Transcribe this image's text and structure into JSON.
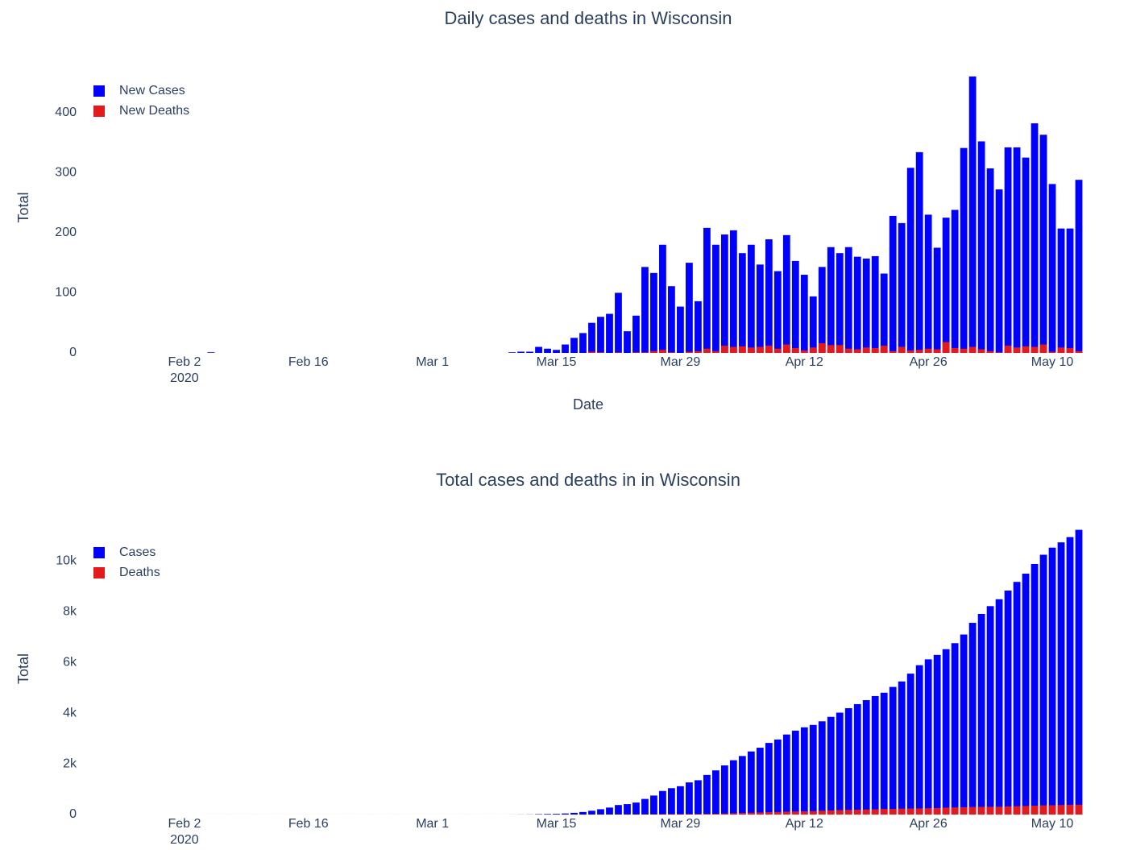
{
  "chart_data": [
    {
      "type": "bar",
      "title": "Daily cases and deaths in Wisconsin",
      "xlabel": "Date",
      "ylabel": "Total",
      "x": [
        "2020-02-05",
        "2020-02-06",
        "2020-02-07",
        "2020-02-08",
        "2020-02-09",
        "2020-02-10",
        "2020-02-11",
        "2020-02-12",
        "2020-02-13",
        "2020-02-14",
        "2020-02-15",
        "2020-02-16",
        "2020-02-17",
        "2020-02-18",
        "2020-02-19",
        "2020-02-20",
        "2020-02-21",
        "2020-02-22",
        "2020-02-23",
        "2020-02-24",
        "2020-02-25",
        "2020-02-26",
        "2020-02-27",
        "2020-02-28",
        "2020-02-29",
        "2020-03-01",
        "2020-03-02",
        "2020-03-03",
        "2020-03-04",
        "2020-03-05",
        "2020-03-06",
        "2020-03-07",
        "2020-03-08",
        "2020-03-09",
        "2020-03-10",
        "2020-03-11",
        "2020-03-12",
        "2020-03-13",
        "2020-03-14",
        "2020-03-15",
        "2020-03-16",
        "2020-03-17",
        "2020-03-18",
        "2020-03-19",
        "2020-03-20",
        "2020-03-21",
        "2020-03-22",
        "2020-03-23",
        "2020-03-24",
        "2020-03-25",
        "2020-03-26",
        "2020-03-27",
        "2020-03-28",
        "2020-03-29",
        "2020-03-30",
        "2020-03-31",
        "2020-04-01",
        "2020-04-02",
        "2020-04-03",
        "2020-04-04",
        "2020-04-05",
        "2020-04-06",
        "2020-04-07",
        "2020-04-08",
        "2020-04-09",
        "2020-04-10",
        "2020-04-11",
        "2020-04-12",
        "2020-04-13",
        "2020-04-14",
        "2020-04-15",
        "2020-04-16",
        "2020-04-17",
        "2020-04-18",
        "2020-04-19",
        "2020-04-20",
        "2020-04-21",
        "2020-04-22",
        "2020-04-23",
        "2020-04-24",
        "2020-04-25",
        "2020-04-26",
        "2020-04-27",
        "2020-04-28",
        "2020-04-29",
        "2020-04-30",
        "2020-05-01",
        "2020-05-02",
        "2020-05-03",
        "2020-05-04",
        "2020-05-05",
        "2020-05-06",
        "2020-05-07",
        "2020-05-08",
        "2020-05-09",
        "2020-05-10",
        "2020-05-11",
        "2020-05-12",
        "2020-05-13"
      ],
      "series": [
        {
          "name": "New Cases",
          "color": "#0000ff",
          "values": [
            1,
            0,
            0,
            0,
            0,
            0,
            0,
            0,
            0,
            0,
            0,
            0,
            0,
            0,
            0,
            0,
            0,
            0,
            0,
            0,
            0,
            0,
            0,
            0,
            0,
            0,
            0,
            0,
            0,
            0,
            0,
            0,
            0,
            0,
            1,
            2,
            2,
            10,
            7,
            5,
            14,
            25,
            33,
            50,
            60,
            65,
            100,
            36,
            62,
            143,
            133,
            180,
            111,
            77,
            150,
            86,
            208,
            180,
            197,
            204,
            166,
            180,
            147,
            189,
            136,
            196,
            153,
            130,
            94,
            143,
            176,
            166,
            176,
            160,
            157,
            161,
            132,
            228,
            216,
            308,
            334,
            230,
            175,
            225,
            238,
            341,
            460,
            352,
            307,
            272,
            342,
            342,
            325,
            382,
            363,
            281,
            207,
            207,
            288
          ]
        },
        {
          "name": "New Deaths",
          "color": "#e31a1c",
          "values": [
            0,
            0,
            0,
            0,
            0,
            0,
            0,
            0,
            0,
            0,
            0,
            0,
            0,
            0,
            0,
            0,
            0,
            0,
            0,
            0,
            0,
            0,
            0,
            0,
            0,
            0,
            0,
            0,
            0,
            0,
            0,
            0,
            0,
            0,
            0,
            0,
            0,
            0,
            0,
            0,
            0,
            0,
            0,
            2,
            1,
            0,
            1,
            0,
            1,
            1,
            3,
            5,
            1,
            0,
            2,
            3,
            7,
            3,
            12,
            10,
            11,
            9,
            10,
            12,
            7,
            14,
            8,
            4,
            9,
            16,
            13,
            13,
            7,
            6,
            9,
            8,
            12,
            3,
            10,
            4,
            5,
            7,
            6,
            18,
            8,
            7,
            10,
            6,
            3,
            1,
            12,
            9,
            11,
            10,
            14,
            2,
            9,
            8,
            3
          ]
        }
      ],
      "xlim": [
        "2020-01-22",
        "2020-05-14"
      ],
      "xticks": [
        {
          "value": "2020-02-02",
          "label": "Feb 2",
          "year": "2020"
        },
        {
          "value": "2020-02-16",
          "label": "Feb 16"
        },
        {
          "value": "2020-03-01",
          "label": "Mar 1"
        },
        {
          "value": "2020-03-15",
          "label": "Mar 15"
        },
        {
          "value": "2020-03-29",
          "label": "Mar 29"
        },
        {
          "value": "2020-04-12",
          "label": "Apr 12"
        },
        {
          "value": "2020-04-26",
          "label": "Apr 26"
        },
        {
          "value": "2020-05-10",
          "label": "May 10"
        }
      ],
      "ylim": [
        0,
        484
      ],
      "yticks": [
        0,
        100,
        200,
        300,
        400
      ],
      "legend": "top-left"
    },
    {
      "type": "bar",
      "title": "Total cases and deaths in in Wisconsin",
      "ylabel": "Total",
      "x": [
        "2020-02-05",
        "2020-02-06",
        "2020-02-07",
        "2020-02-08",
        "2020-02-09",
        "2020-02-10",
        "2020-02-11",
        "2020-02-12",
        "2020-02-13",
        "2020-02-14",
        "2020-02-15",
        "2020-02-16",
        "2020-02-17",
        "2020-02-18",
        "2020-02-19",
        "2020-02-20",
        "2020-02-21",
        "2020-02-22",
        "2020-02-23",
        "2020-02-24",
        "2020-02-25",
        "2020-02-26",
        "2020-02-27",
        "2020-02-28",
        "2020-02-29",
        "2020-03-01",
        "2020-03-02",
        "2020-03-03",
        "2020-03-04",
        "2020-03-05",
        "2020-03-06",
        "2020-03-07",
        "2020-03-08",
        "2020-03-09",
        "2020-03-10",
        "2020-03-11",
        "2020-03-12",
        "2020-03-13",
        "2020-03-14",
        "2020-03-15",
        "2020-03-16",
        "2020-03-17",
        "2020-03-18",
        "2020-03-19",
        "2020-03-20",
        "2020-03-21",
        "2020-03-22",
        "2020-03-23",
        "2020-03-24",
        "2020-03-25",
        "2020-03-26",
        "2020-03-27",
        "2020-03-28",
        "2020-03-29",
        "2020-03-30",
        "2020-03-31",
        "2020-04-01",
        "2020-04-02",
        "2020-04-03",
        "2020-04-04",
        "2020-04-05",
        "2020-04-06",
        "2020-04-07",
        "2020-04-08",
        "2020-04-09",
        "2020-04-10",
        "2020-04-11",
        "2020-04-12",
        "2020-04-13",
        "2020-04-14",
        "2020-04-15",
        "2020-04-16",
        "2020-04-17",
        "2020-04-18",
        "2020-04-19",
        "2020-04-20",
        "2020-04-21",
        "2020-04-22",
        "2020-04-23",
        "2020-04-24",
        "2020-04-25",
        "2020-04-26",
        "2020-04-27",
        "2020-04-28",
        "2020-04-29",
        "2020-04-30",
        "2020-05-01",
        "2020-05-02",
        "2020-05-03",
        "2020-05-04",
        "2020-05-05",
        "2020-05-06",
        "2020-05-07",
        "2020-05-08",
        "2020-05-09",
        "2020-05-10",
        "2020-05-11",
        "2020-05-12",
        "2020-05-13"
      ],
      "series": [
        {
          "name": "Cases",
          "color": "#0000ff",
          "values": [
            1,
            1,
            1,
            1,
            1,
            1,
            1,
            1,
            1,
            1,
            1,
            1,
            1,
            1,
            1,
            1,
            1,
            1,
            1,
            1,
            1,
            1,
            1,
            1,
            1,
            1,
            1,
            1,
            1,
            1,
            1,
            1,
            1,
            1,
            2,
            4,
            6,
            16,
            23,
            28,
            42,
            67,
            100,
            150,
            210,
            275,
            375,
            411,
            473,
            616,
            749,
            929,
            1040,
            1117,
            1267,
            1353,
            1561,
            1741,
            1938,
            2142,
            2308,
            2488,
            2635,
            2824,
            2960,
            3156,
            3309,
            3439,
            3533,
            3676,
            3852,
            4018,
            4194,
            4354,
            4511,
            4672,
            4804,
            5032,
            5248,
            5556,
            5890,
            6120,
            6295,
            6520,
            6758,
            7099,
            7559,
            7911,
            8218,
            8490,
            8832,
            9174,
            9499,
            9881,
            10244,
            10525,
            10732,
            10939,
            11227
          ]
        },
        {
          "name": "Deaths",
          "color": "#e31a1c",
          "values": [
            0,
            0,
            0,
            0,
            0,
            0,
            0,
            0,
            0,
            0,
            0,
            0,
            0,
            0,
            0,
            0,
            0,
            0,
            0,
            0,
            0,
            0,
            0,
            0,
            0,
            0,
            0,
            0,
            0,
            0,
            0,
            0,
            0,
            0,
            0,
            0,
            0,
            0,
            0,
            0,
            0,
            0,
            0,
            2,
            3,
            3,
            4,
            4,
            5,
            6,
            9,
            14,
            15,
            15,
            17,
            20,
            27,
            30,
            42,
            52,
            63,
            72,
            82,
            94,
            101,
            115,
            123,
            127,
            136,
            152,
            165,
            178,
            185,
            191,
            200,
            208,
            220,
            223,
            233,
            237,
            242,
            249,
            255,
            273,
            281,
            288,
            298,
            304,
            307,
            308,
            320,
            329,
            340,
            350,
            364,
            366,
            375,
            383,
            386
          ]
        }
      ],
      "xlim": [
        "2020-01-22",
        "2020-05-14"
      ],
      "xticks": [
        {
          "value": "2020-02-02",
          "label": "Feb 2",
          "year": "2020"
        },
        {
          "value": "2020-02-16",
          "label": "Feb 16"
        },
        {
          "value": "2020-03-01",
          "label": "Mar 1"
        },
        {
          "value": "2020-03-15",
          "label": "Mar 15"
        },
        {
          "value": "2020-03-29",
          "label": "Mar 29"
        },
        {
          "value": "2020-04-12",
          "label": "Apr 12"
        },
        {
          "value": "2020-04-26",
          "label": "Apr 26"
        },
        {
          "value": "2020-05-10",
          "label": "May 10"
        }
      ],
      "ylim": [
        0,
        11500
      ],
      "yticks": [
        0,
        {
          "value": 2000,
          "label": "2k"
        },
        {
          "value": 4000,
          "label": "4k"
        },
        {
          "value": 6000,
          "label": "6k"
        },
        {
          "value": 8000,
          "label": "8k"
        },
        {
          "value": 10000,
          "label": "10k"
        }
      ],
      "legend": "top-left"
    }
  ]
}
